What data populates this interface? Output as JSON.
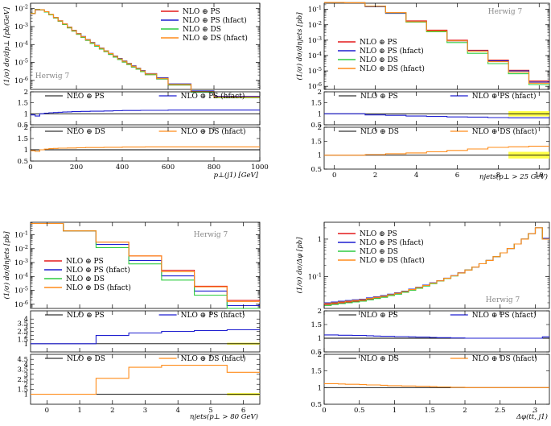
{
  "chart_data": [
    {
      "type": "line",
      "title": "",
      "xlabel": "p⊥(j1) [GeV]",
      "ylabel": "(1/σ) dσ/dp⊥ [pb/GeV]",
      "xlim": [
        0,
        1000
      ],
      "ylim_log": [
        -6.5,
        -1.7
      ],
      "xticks": [
        "0",
        "200",
        "400",
        "600",
        "800",
        "1000"
      ],
      "yticks": [
        "10^-6",
        "10^-5",
        "10^-4",
        "10^-3",
        "10^-2"
      ],
      "generator": "Herwig 7",
      "legend": [
        "NLO ⊕ PS",
        "NLO ⊕ PS (hfact)",
        "NLO ⊕ DS",
        "NLO ⊕ DS (hfact)"
      ],
      "bin_edges": [
        0,
        20,
        40,
        60,
        80,
        100,
        120,
        140,
        160,
        180,
        200,
        220,
        240,
        260,
        280,
        300,
        320,
        340,
        360,
        380,
        400,
        420,
        440,
        460,
        480,
        500,
        550,
        600,
        700,
        800,
        1000
      ],
      "series": [
        {
          "name": "NLO ⊕ PS",
          "color": "#e41a1c",
          "values": [
            0.0055,
            0.009,
            0.0085,
            0.0065,
            0.0045,
            0.003,
            0.002,
            0.0013,
            0.00085,
            0.00056,
            0.00037,
            0.00025,
            0.00017,
            0.000115,
            8e-05,
            5.6e-05,
            4e-05,
            2.8e-05,
            2e-05,
            1.45e-05,
            1.05e-05,
            7.7e-06,
            5.6e-06,
            4.2e-06,
            3.1e-06,
            2.1e-06,
            1.2e-06,
            5.5e-07,
            2.2e-07,
            1.1e-07
          ]
        },
        {
          "name": "NLO ⊕ PS (hfact)",
          "color": "#1f1fd0",
          "values": [
            0.0052,
            0.0085,
            0.0085,
            0.0067,
            0.0047,
            0.0032,
            0.0021,
            0.0014,
            0.00093,
            0.00062,
            0.00041,
            0.00028,
            0.00019,
            0.00013,
            9e-05,
            6.3e-05,
            4.5e-05,
            3.2e-05,
            2.3e-05,
            1.67e-05,
            1.21e-05,
            8.9e-06,
            6.5e-06,
            4.8e-06,
            3.6e-06,
            2.4e-06,
            1.4e-06,
            6.4e-07,
            2.6e-07,
            1.3e-07
          ]
        },
        {
          "name": "NLO ⊕ DS",
          "color": "#2ecc40",
          "values": [
            0.0055,
            0.009,
            0.0085,
            0.0065,
            0.0045,
            0.003,
            0.002,
            0.0013,
            0.00085,
            0.00056,
            0.00037,
            0.00025,
            0.00017,
            0.000115,
            8e-05,
            5.6e-05,
            4e-05,
            2.8e-05,
            2e-05,
            1.45e-05,
            1.05e-05,
            7.7e-06,
            5.6e-06,
            4.2e-06,
            3.1e-06,
            2.1e-06,
            1.2e-06,
            5.5e-07,
            2.2e-07,
            1.1e-07
          ]
        },
        {
          "name": "NLO ⊕ DS (hfact)",
          "color": "#ff8c1a",
          "values": [
            0.0053,
            0.0086,
            0.0086,
            0.0068,
            0.0048,
            0.0032,
            0.0021,
            0.0014,
            0.00092,
            0.00061,
            0.0004,
            0.00027,
            0.000185,
            0.000126,
            8.8e-05,
            6.2e-05,
            4.4e-05,
            3.1e-05,
            2.2e-05,
            1.6e-05,
            1.16e-05,
            8.5e-06,
            6.2e-06,
            4.6e-06,
            3.4e-06,
            2.3e-06,
            1.3e-06,
            6e-07,
            2.4e-07,
            1.2e-07
          ]
        }
      ],
      "ratio_panels": [
        {
          "reference": "NLO ⊕ PS",
          "compare": "NLO ⊕ PS (hfact)",
          "compare_color": "#1f1fd0",
          "ylim": [
            0.5,
            2.0
          ],
          "yticks": [
            "0.5",
            "1",
            "1.5",
            "2"
          ],
          "values": [
            0.95,
            0.9,
            1.0,
            1.03,
            1.05,
            1.06,
            1.07,
            1.08,
            1.09,
            1.1,
            1.1,
            1.11,
            1.11,
            1.12,
            1.12,
            1.12,
            1.13,
            1.13,
            1.14,
            1.14,
            1.15,
            1.15,
            1.15,
            1.15,
            1.16,
            1.16,
            1.16,
            1.17,
            1.17,
            1.17
          ]
        },
        {
          "reference": "NLO ⊕ DS",
          "compare": "NLO ⊕ DS (hfact)",
          "compare_color": "#ff8c1a",
          "ylim": [
            0.5,
            2.0
          ],
          "yticks": [
            "0.5",
            "1",
            "1.5",
            "2"
          ],
          "values": [
            0.96,
            0.93,
            1.0,
            1.03,
            1.05,
            1.06,
            1.07,
            1.07,
            1.08,
            1.08,
            1.09,
            1.09,
            1.1,
            1.1,
            1.1,
            1.1,
            1.11,
            1.11,
            1.11,
            1.11,
            1.12,
            1.12,
            1.12,
            1.12,
            1.12,
            1.13,
            1.13,
            1.13,
            1.13,
            1.13
          ]
        }
      ]
    },
    {
      "type": "line",
      "title": "",
      "xlabel": "njets(p⊥ > 25 GeV)",
      "ylabel": "(1/σ) dσ/dnjets [pb]",
      "xlim": [
        -0.5,
        10.5
      ],
      "ylim_log": [
        -6.2,
        -0.6
      ],
      "xticks": [
        "0",
        "2",
        "4",
        "6",
        "8",
        "10"
      ],
      "yticks": [
        "10^-6",
        "10^-5",
        "10^-4",
        "10^-3",
        "10^-2",
        "10^-1"
      ],
      "generator": "Herwig 7",
      "legend": [
        "NLO ⊕ PS",
        "NLO ⊕ PS (hfact)",
        "NLO ⊕ DS",
        "NLO ⊕ DS (hfact)"
      ],
      "bin_edges": [
        -0.5,
        0.5,
        1.5,
        2.5,
        3.5,
        4.5,
        5.5,
        6.5,
        7.5,
        8.5,
        9.5,
        10.5
      ],
      "series": [
        {
          "name": "NLO ⊕ PS",
          "color": "#e41a1c",
          "values": [
            0.28,
            0.27,
            0.16,
            0.06,
            0.018,
            0.0045,
            0.001,
            0.00022,
            5e-05,
            1.1e-05,
            2.2e-06
          ]
        },
        {
          "name": "NLO ⊕ PS (hfact)",
          "color": "#1f1fd0",
          "values": [
            0.28,
            0.27,
            0.15,
            0.055,
            0.016,
            0.004,
            0.0009,
            0.0002,
            4.5e-05,
            1e-05,
            1.9e-06
          ]
        },
        {
          "name": "NLO ⊕ DS",
          "color": "#2ecc40",
          "values": [
            0.28,
            0.27,
            0.16,
            0.06,
            0.015,
            0.0035,
            0.0007,
            0.00014,
            3e-05,
            6.5e-06,
            1.3e-06
          ]
        },
        {
          "name": "NLO ⊕ DS (hfact)",
          "color": "#ff8c1a",
          "values": [
            0.28,
            0.27,
            0.16,
            0.061,
            0.016,
            0.004,
            0.0009,
            0.00019,
            4e-05,
            8.5e-06,
            1.6e-06
          ]
        }
      ],
      "ratio_panels": [
        {
          "reference": "NLO ⊕ PS",
          "compare": "NLO ⊕ PS (hfact)",
          "compare_color": "#1f1fd0",
          "ylim": [
            0.5,
            2.0
          ],
          "yticks": [
            "0.5",
            "1",
            "1.5",
            "2"
          ],
          "values": [
            1.0,
            1.0,
            0.95,
            0.93,
            0.9,
            0.88,
            0.86,
            0.85,
            0.83,
            0.82,
            0.82
          ],
          "band_from": 8.5
        },
        {
          "reference": "NLO ⊕ DS",
          "compare": "NLO ⊕ DS (hfact)",
          "compare_color": "#ff8c1a",
          "ylim": [
            0.5,
            2.0
          ],
          "yticks": [
            "0.5",
            "1",
            "1.5",
            "2"
          ],
          "values": [
            1.0,
            1.0,
            1.02,
            1.05,
            1.08,
            1.12,
            1.17,
            1.22,
            1.28,
            1.3,
            1.32
          ],
          "band_from": 8.5
        }
      ]
    },
    {
      "type": "line",
      "title": "",
      "xlabel": "njets(p⊥ > 80 GeV)",
      "ylabel": "(1/σ) dσ/dnjets [pb]",
      "xlim": [
        -0.5,
        6.5
      ],
      "ylim_log": [
        -6.3,
        -0.1
      ],
      "xticks": [
        "0",
        "1",
        "2",
        "3",
        "4",
        "5",
        "6"
      ],
      "yticks": [
        "10^-6",
        "10^-5",
        "10^-4",
        "10^-3",
        "10^-2",
        "10^-1"
      ],
      "generator": "Herwig 7",
      "legend": [
        "NLO ⊕ PS",
        "NLO ⊕ PS (hfact)",
        "NLO ⊕ DS",
        "NLO ⊕ DS (hfact)"
      ],
      "bin_edges": [
        -0.5,
        0.5,
        1.5,
        2.5,
        3.5,
        4.5,
        5.5,
        6.5
      ],
      "series": [
        {
          "name": "NLO ⊕ PS",
          "color": "#e41a1c",
          "values": [
            0.65,
            0.19,
            0.03,
            0.003,
            0.00028,
            2e-05,
            1.9e-06
          ]
        },
        {
          "name": "NLO ⊕ PS (hfact)",
          "color": "#1f1fd0",
          "values": [
            0.65,
            0.19,
            0.02,
            0.0014,
            0.00011,
            9e-06,
            8e-07
          ]
        },
        {
          "name": "NLO ⊕ DS",
          "color": "#2ecc40",
          "values": [
            0.65,
            0.19,
            0.012,
            0.0008,
            5.5e-05,
            4.5e-06,
            5e-07
          ]
        },
        {
          "name": "NLO ⊕ DS (hfact)",
          "color": "#ff8c1a",
          "values": [
            0.65,
            0.19,
            0.03,
            0.003,
            0.00022,
            1.8e-05,
            1.6e-06
          ]
        }
      ],
      "ratio_panels": [
        {
          "reference": "NLO ⊕ PS",
          "compare": "NLO ⊕ PS (hfact)",
          "compare_color": "#1f1fd0",
          "ylim": [
            0.0,
            5.0
          ],
          "yticks": [
            "1",
            "1.5",
            "2",
            "2.5",
            "3",
            "3.5",
            "4"
          ],
          "values": [
            1.0,
            1.0,
            2.0,
            2.3,
            2.5,
            2.6,
            2.7
          ],
          "band_from": 5.5
        },
        {
          "reference": "NLO ⊕ DS",
          "compare": "NLO ⊕ DS (hfact)",
          "compare_color": "#ff8c1a",
          "ylim": [
            0.0,
            5.0
          ],
          "yticks": [
            "1",
            "1.5",
            "2",
            "2.5",
            "3",
            "3.5",
            "4",
            "4.5"
          ],
          "values": [
            1.0,
            1.0,
            2.6,
            3.7,
            3.9,
            3.9,
            3.2
          ],
          "band_from": 5.5
        }
      ]
    },
    {
      "type": "line",
      "title": "",
      "xlabel": "Δφ(tt̄, j1)",
      "ylabel": "(1/σ) dσ/Δφ [pb]",
      "xlim": [
        0,
        3.2
      ],
      "ylim_log": [
        -1.85,
        0.45
      ],
      "xticks": [
        "0",
        "0.5",
        "1",
        "1.5",
        "2",
        "2.5",
        "3"
      ],
      "yticks": [
        "10^-1",
        "1"
      ],
      "generator": "Herwig 7",
      "legend": [
        "NLO ⊕ PS",
        "NLO ⊕ PS (hfact)",
        "NLO ⊕ DS",
        "NLO ⊕ DS (hfact)"
      ],
      "bin_edges": [
        0,
        0.1,
        0.2,
        0.3,
        0.4,
        0.5,
        0.6,
        0.7,
        0.8,
        0.9,
        1.0,
        1.1,
        1.2,
        1.3,
        1.4,
        1.5,
        1.6,
        1.7,
        1.8,
        1.9,
        2.0,
        2.1,
        2.2,
        2.3,
        2.4,
        2.5,
        2.6,
        2.7,
        2.8,
        2.9,
        3.0,
        3.1,
        3.2
      ],
      "series": [
        {
          "name": "NLO ⊕ PS",
          "color": "#e41a1c",
          "values": [
            0.018,
            0.019,
            0.02,
            0.021,
            0.022,
            0.023,
            0.025,
            0.027,
            0.029,
            0.032,
            0.035,
            0.039,
            0.044,
            0.05,
            0.057,
            0.066,
            0.077,
            0.09,
            0.105,
            0.125,
            0.15,
            0.18,
            0.22,
            0.27,
            0.34,
            0.43,
            0.56,
            0.74,
            1.0,
            1.4,
            2.0,
            1.0
          ]
        },
        {
          "name": "NLO ⊕ PS (hfact)",
          "color": "#1f1fd0",
          "values": [
            0.02,
            0.021,
            0.022,
            0.023,
            0.024,
            0.025,
            0.027,
            0.029,
            0.031,
            0.034,
            0.037,
            0.041,
            0.046,
            0.052,
            0.059,
            0.068,
            0.078,
            0.091,
            0.106,
            0.126,
            0.15,
            0.18,
            0.22,
            0.27,
            0.34,
            0.43,
            0.56,
            0.74,
            1.0,
            1.4,
            2.0,
            1.05
          ]
        },
        {
          "name": "NLO ⊕ DS",
          "color": "#2ecc40",
          "values": [
            0.017,
            0.018,
            0.019,
            0.02,
            0.021,
            0.022,
            0.024,
            0.026,
            0.028,
            0.031,
            0.034,
            0.038,
            0.043,
            0.049,
            0.056,
            0.065,
            0.076,
            0.089,
            0.104,
            0.124,
            0.15,
            0.18,
            0.22,
            0.27,
            0.34,
            0.43,
            0.56,
            0.74,
            1.0,
            1.4,
            2.0,
            1.0
          ]
        },
        {
          "name": "NLO ⊕ DS (hfact)",
          "color": "#ff8c1a",
          "values": [
            0.019,
            0.02,
            0.021,
            0.022,
            0.023,
            0.024,
            0.026,
            0.028,
            0.03,
            0.033,
            0.036,
            0.04,
            0.045,
            0.051,
            0.058,
            0.067,
            0.077,
            0.09,
            0.105,
            0.125,
            0.15,
            0.18,
            0.22,
            0.27,
            0.34,
            0.43,
            0.56,
            0.74,
            1.0,
            1.4,
            2.0,
            1.0
          ]
        }
      ],
      "ratio_panels": [
        {
          "reference": "NLO ⊕ PS",
          "compare": "NLO ⊕ PS (hfact)",
          "compare_color": "#1f1fd0",
          "ylim": [
            0.5,
            2.0
          ],
          "yticks": [
            "0.5",
            "1",
            "1.5",
            "2"
          ],
          "values": [
            1.12,
            1.12,
            1.11,
            1.11,
            1.1,
            1.1,
            1.09,
            1.08,
            1.07,
            1.07,
            1.06,
            1.06,
            1.05,
            1.04,
            1.04,
            1.03,
            1.02,
            1.02,
            1.01,
            1.01,
            1.0,
            1.0,
            1.0,
            1.0,
            1.0,
            1.0,
            1.0,
            1.0,
            1.0,
            1.0,
            1.0,
            1.05
          ]
        },
        {
          "reference": "NLO ⊕ DS",
          "compare": "NLO ⊕ DS (hfact)",
          "compare_color": "#ff8c1a",
          "ylim": [
            0.5,
            2.0
          ],
          "yticks": [
            "0.5",
            "1",
            "1.5",
            "2"
          ],
          "values": [
            1.12,
            1.12,
            1.11,
            1.1,
            1.1,
            1.09,
            1.08,
            1.08,
            1.07,
            1.06,
            1.06,
            1.05,
            1.05,
            1.04,
            1.04,
            1.03,
            1.02,
            1.02,
            1.01,
            1.01,
            1.0,
            1.0,
            1.0,
            1.0,
            1.0,
            1.0,
            1.0,
            1.0,
            1.0,
            1.0,
            1.0,
            1.0
          ]
        }
      ]
    }
  ]
}
